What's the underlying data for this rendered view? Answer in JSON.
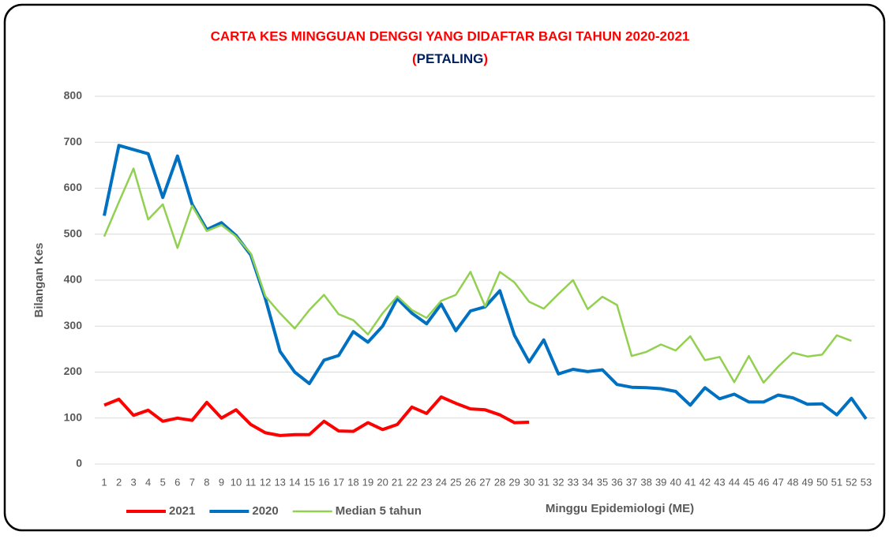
{
  "chart_data": {
    "type": "line",
    "title": "CARTA KES MINGGUAN DENGGI YANG DIDAFTAR BAGI TAHUN 2020-2021",
    "subtitle": [
      "(",
      "PETALING",
      ")"
    ],
    "subtitle_colors": [
      "#ff0000",
      "#002060",
      "#ff0000"
    ],
    "title_color": "#ff0000",
    "x_label": "Minggu Epidemiologi (ME)",
    "y_label": "Bilangan Kes",
    "categories": [
      "1",
      "2",
      "3",
      "4",
      "5",
      "6",
      "7",
      "8",
      "9",
      "10",
      "11",
      "12",
      "13",
      "14",
      "15",
      "16",
      "17",
      "18",
      "19",
      "20",
      "21",
      "22",
      "23",
      "24",
      "25",
      "26",
      "27",
      "28",
      "29",
      "30",
      "31",
      "32",
      "33",
      "34",
      "35",
      "36",
      "37",
      "38",
      "39",
      "40",
      "41",
      "42",
      "43",
      "44",
      "45",
      "46",
      "47",
      "48",
      "49",
      "50",
      "51",
      "52",
      "53"
    ],
    "ylim": [
      0,
      800
    ],
    "yticks": [
      0,
      100,
      200,
      300,
      400,
      500,
      600,
      700,
      800
    ],
    "grid": true,
    "legend": "bottom-left",
    "series": [
      {
        "name": "2021",
        "color": "#ff0000",
        "width": 4,
        "values": [
          128,
          141,
          106,
          117,
          93,
          100,
          95,
          134,
          100,
          118,
          86,
          68,
          62,
          64,
          64,
          93,
          72,
          71,
          90,
          75,
          86,
          124,
          110,
          146,
          132,
          120,
          118,
          107,
          90,
          91,
          null,
          null,
          null,
          null,
          null,
          null,
          null,
          null,
          null,
          null,
          null,
          null,
          null,
          null,
          null,
          null,
          null,
          null,
          null,
          null,
          null,
          null,
          null
        ]
      },
      {
        "name": "2020",
        "color": "#0070c0",
        "width": 4,
        "values": [
          540,
          693,
          684,
          675,
          580,
          670,
          565,
          510,
          525,
          497,
          455,
          360,
          245,
          200,
          175,
          226,
          236,
          288,
          265,
          300,
          360,
          328,
          305,
          348,
          290,
          333,
          342,
          377,
          280,
          222,
          270,
          196,
          206,
          201,
          205,
          173,
          167,
          166,
          164,
          158,
          128,
          166,
          142,
          152,
          135,
          135,
          150,
          144,
          130,
          131,
          107,
          143,
          98
        ]
      },
      {
        "name": "Median 5 tahun",
        "color": "#92d050",
        "width": 2.5,
        "values": [
          495,
          570,
          643,
          532,
          565,
          470,
          562,
          507,
          520,
          495,
          458,
          365,
          328,
          295,
          335,
          368,
          326,
          313,
          282,
          328,
          365,
          335,
          318,
          355,
          368,
          418,
          343,
          418,
          395,
          353,
          338,
          370,
          400,
          337,
          364,
          346,
          235,
          244,
          260,
          247,
          278,
          226,
          233,
          178,
          235,
          177,
          212,
          242,
          234,
          238,
          280,
          268,
          null
        ]
      }
    ]
  }
}
